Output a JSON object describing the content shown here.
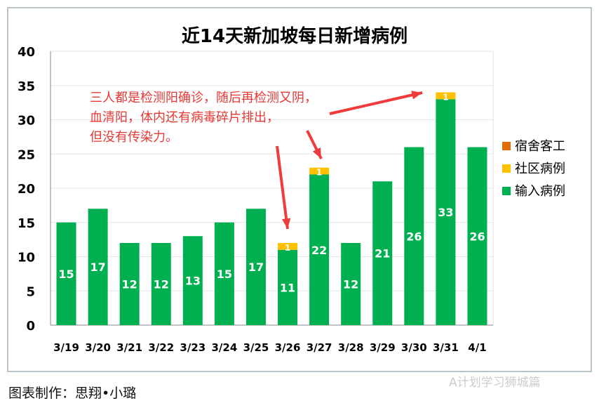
{
  "chart_data": {
    "type": "bar",
    "stacked": true,
    "title": "近14天新加坡每日新增病例",
    "categories": [
      "3/19",
      "3/20",
      "3/21",
      "3/22",
      "3/23",
      "3/24",
      "3/25",
      "3/26",
      "3/27",
      "3/28",
      "3/29",
      "3/30",
      "3/31",
      "4/1"
    ],
    "series": [
      {
        "name": "输入病例",
        "color": "#00b050",
        "values": [
          15,
          17,
          12,
          12,
          13,
          15,
          17,
          11,
          22,
          12,
          21,
          26,
          33,
          26
        ]
      },
      {
        "name": "社区病例",
        "color": "#ffc000",
        "values": [
          0,
          0,
          0,
          0,
          0,
          0,
          0,
          1,
          1,
          0,
          0,
          0,
          1,
          0
        ]
      },
      {
        "name": "宿舍客工",
        "color": "#e36c09",
        "values": [
          0,
          0,
          0,
          0,
          0,
          0,
          0,
          0,
          0,
          0,
          0,
          0,
          0,
          0
        ]
      }
    ],
    "ylim": [
      0,
      40
    ],
    "yticks": [
      0,
      5,
      10,
      15,
      20,
      25,
      30,
      35,
      40
    ],
    "legend": "right",
    "grid": true,
    "annotation": [
      "三人都是检测阳确诊，随后再检测又阴，",
      "血清阳，体内还有病毒碎片排出，",
      "但没有传染力。"
    ]
  },
  "footer": "图表制作：思翔•小璐",
  "watermark": "A计划学习狮城篇"
}
